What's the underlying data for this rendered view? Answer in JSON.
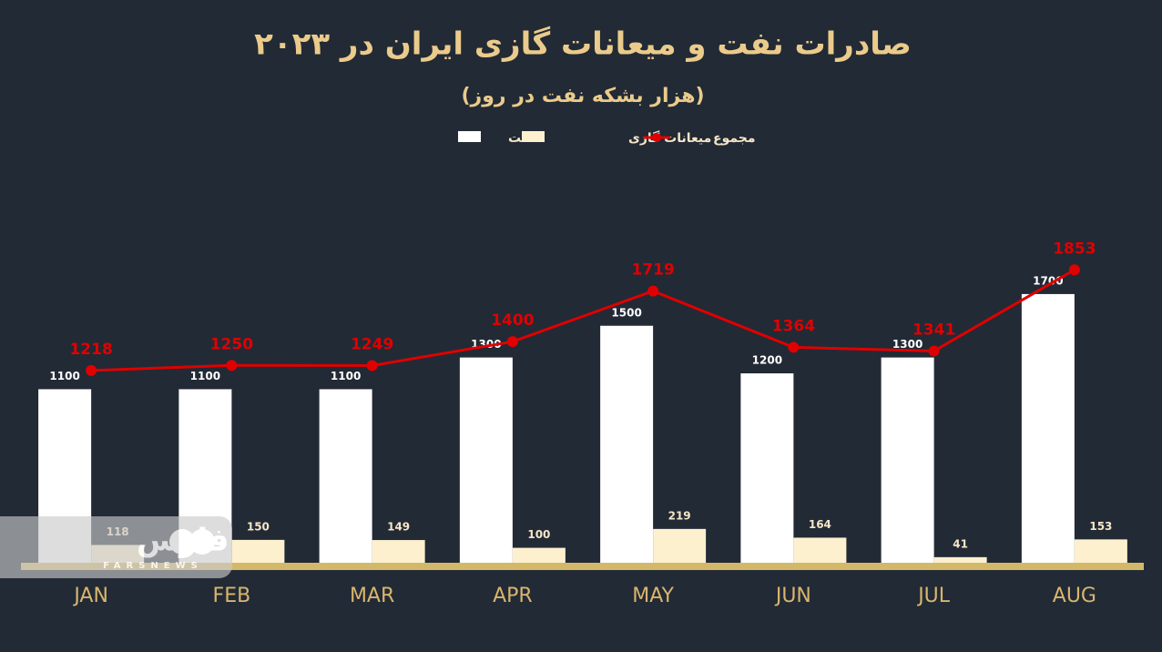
{
  "chart_data": {
    "type": "bar",
    "title": "صادرات نفت و میعانات گازی ایران در ۲۰۲۳",
    "subtitle": "(هزار بشکه نفت در روز)",
    "categories": [
      "JAN",
      "FEB",
      "MAR",
      "APR",
      "MAY",
      "JUN",
      "JUL",
      "AUG"
    ],
    "series": [
      {
        "name": "نفت",
        "color": "#ffffff",
        "values": [
          1100,
          1100,
          1100,
          1300,
          1500,
          1200,
          1300,
          1700
        ]
      },
      {
        "name": "میعانات گازی",
        "color": "#fdf0cf",
        "values": [
          118,
          150,
          149,
          100,
          219,
          164,
          41,
          153
        ]
      },
      {
        "name": "مجموع",
        "color": "#e00000",
        "type": "line",
        "values": [
          1218,
          1250,
          1249,
          1400,
          1719,
          1364,
          1341,
          1853
        ]
      }
    ],
    "ylim": [
      0,
      2400
    ],
    "watermark": {
      "logo": "فارس",
      "text": "FARSNEWS"
    }
  }
}
